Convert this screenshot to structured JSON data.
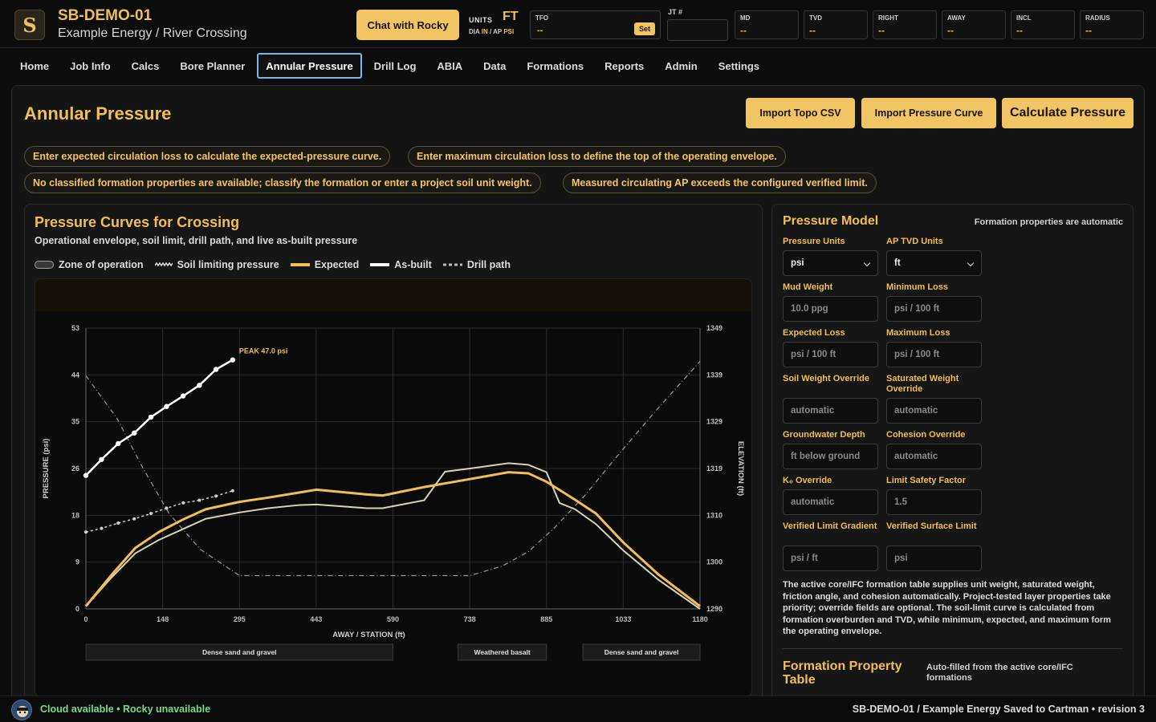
{
  "header": {
    "job_id": "SB-DEMO-01",
    "job_subtitle": "Example Energy / River Crossing",
    "chat_button": "Chat with Rocky",
    "units_label": "UNITS",
    "units_value": "FT",
    "units_sub_dia": "DIA",
    "units_sub_dia_unit": "IN",
    "units_sub_sep": "/",
    "units_sub_ap": "AP",
    "units_sub_ap_unit": "PSI",
    "tfo_label": "TFO",
    "tfo_value": "--",
    "tfo_set": "Set",
    "jt_label": "JT #",
    "metrics": [
      {
        "label": "MD",
        "value": "--"
      },
      {
        "label": "TVD",
        "value": "--"
      },
      {
        "label": "RIGHT",
        "value": "--"
      },
      {
        "label": "AWAY",
        "value": "--"
      },
      {
        "label": "INCL",
        "value": "--"
      },
      {
        "label": "RADIUS",
        "value": "--"
      }
    ]
  },
  "nav": {
    "tabs": [
      "Home",
      "Job Info",
      "Calcs",
      "Bore Planner",
      "Annular Pressure",
      "Drill Log",
      "ABIA",
      "Data",
      "Formations",
      "Reports",
      "Admin",
      "Settings"
    ],
    "active": "Annular Pressure"
  },
  "page": {
    "title": "Annular Pressure",
    "buttons": {
      "import_topo": "Import Topo CSV",
      "import_curve": "Import Pressure Curve",
      "calculate": "Calculate Pressure"
    },
    "warnings": [
      "Enter expected circulation loss to calculate the expected-pressure curve.",
      "Enter maximum circulation loss to define the top of the operating envelope.",
      "No classified formation properties are available; classify the formation or enter a project soil unit weight.",
      "Measured circulating AP exceeds the configured verified limit."
    ]
  },
  "chart_card": {
    "title": "Pressure Curves for Crossing",
    "subtitle": "Operational envelope, soil limit, drill path, and live as-built pressure",
    "legend": [
      "Zone of operation",
      "Soil limiting pressure",
      "Expected",
      "As-built",
      "Drill path"
    ]
  },
  "chart_data": {
    "type": "line",
    "xlabel": "AWAY / STATION (ft)",
    "ylabel": "PRESSURE (psi)",
    "y2label": "ELEVATION (ft)",
    "xlim": [
      0,
      1180
    ],
    "ylim": [
      0,
      53
    ],
    "y2lim": [
      1290,
      1349
    ],
    "x_ticks": [
      "0",
      "148",
      "295",
      "443",
      "590",
      "738",
      "885",
      "1033",
      "1180"
    ],
    "y_ticks": [
      "0",
      "9",
      "18",
      "26",
      "35",
      "44",
      "53"
    ],
    "y2_ticks": [
      "1290",
      "1300",
      "1310",
      "1319",
      "1329",
      "1339",
      "1349"
    ],
    "peak_label": "PEAK 47.0 psi",
    "colors": {
      "expected": "#f0bf55",
      "asbuilt": "#ffffff",
      "zone": "#d8d2b8",
      "soil": "#cfcfcf",
      "drill": "#9a9a9a"
    },
    "series": [
      {
        "name": "As-built",
        "x": [
          0,
          30,
          62,
          93,
          125,
          155,
          187,
          218,
          250,
          282
        ],
        "y": [
          25.2,
          28.2,
          31.2,
          33.2,
          36.2,
          38.2,
          40.2,
          42.2,
          45.2,
          47.0
        ]
      },
      {
        "name": "Soil limiting pressure",
        "x": [
          0,
          30,
          62,
          93,
          125,
          155,
          187,
          218,
          250,
          282
        ],
        "y": [
          14.5,
          15.2,
          16.2,
          17.0,
          18.0,
          19.0,
          20.0,
          20.5,
          21.3,
          22.3
        ]
      },
      {
        "name": "Expected",
        "x": [
          0,
          50,
          95,
          140,
          185,
          230,
          295,
          350,
          443,
          540,
          570,
          650,
          738,
          812,
          850,
          885,
          940,
          980,
          1033,
          1100,
          1180
        ],
        "y": [
          0.5,
          6.5,
          11.5,
          14.5,
          16.8,
          18.8,
          20.2,
          21.0,
          22.5,
          21.6,
          21.4,
          23.0,
          24.5,
          25.8,
          25.6,
          24.0,
          20.6,
          18.0,
          12.5,
          6.5,
          0.5
        ]
      },
      {
        "name": "Zone of operation",
        "x": [
          0,
          50,
          95,
          140,
          185,
          230,
          295,
          350,
          410,
          443,
          540,
          570,
          650,
          690,
          738,
          812,
          850,
          885,
          910,
          940,
          980,
          1033,
          1100,
          1180
        ],
        "y": [
          0.5,
          6.0,
          10.5,
          13.0,
          15.0,
          17.0,
          18.2,
          19.0,
          19.6,
          19.7,
          19.0,
          19.0,
          20.5,
          25.9,
          26.5,
          27.5,
          27.2,
          25.8,
          20.0,
          18.8,
          16.0,
          11.0,
          5.5,
          0.0
        ]
      },
      {
        "name": "Drill path",
        "x": [
          0,
          60,
          110,
          160,
          220,
          295,
          443,
          590,
          738,
          800,
          850,
          900,
          960,
          1020,
          1090,
          1180
        ],
        "y": [
          1339.0,
          1330.0,
          1319.5,
          1310.0,
          1302.5,
          1297.0,
          1297.0,
          1297.0,
          1297.0,
          1299.0,
          1302.0,
          1307.0,
          1314.0,
          1322.0,
          1331.0,
          1342.0
        ]
      }
    ],
    "formations": [
      "Dense sand and gravel",
      "Weathered basalt",
      "Dense sand and gravel"
    ]
  },
  "pressure_model": {
    "title": "Pressure Model",
    "note": "Formation properties are automatic",
    "fields": [
      {
        "label": "Pressure Units",
        "value": "psi"
      },
      {
        "label": "AP TVD Units",
        "value": "ft"
      },
      {
        "label": "Mud Weight",
        "placeholder": "10.0 ppg"
      },
      {
        "label": "Minimum Loss",
        "placeholder": "psi / 100 ft"
      },
      {
        "label": "Expected Loss",
        "placeholder": "psi / 100 ft"
      },
      {
        "label": "Maximum Loss",
        "placeholder": "psi / 100 ft"
      },
      {
        "label": "Soil Weight Override",
        "placeholder": "automatic"
      },
      {
        "label": "Saturated Weight Override",
        "placeholder": "automatic"
      },
      {
        "label": "Groundwater Depth",
        "placeholder": "ft below ground"
      },
      {
        "label": "Cohesion Override",
        "placeholder": "automatic"
      },
      {
        "label": "K₀ Override",
        "placeholder": "automatic"
      },
      {
        "label": "Limit Safety Factor",
        "placeholder": "1.5"
      },
      {
        "label": "Verified Limit Gradient",
        "placeholder": "psi / ft"
      },
      {
        "label": "Verified Surface Limit",
        "placeholder": "psi"
      }
    ],
    "paragraph": "The active core/IFC formation table supplies unit weight, saturated weight, friction angle, and cohesion automatically. Project-tested layer properties take priority; override fields are optional. The soil-limit curve is calculated from formation overburden and TVD, while minimum, expected, and maximum form the operating envelope.",
    "fpt_title": "Formation Property Table",
    "fpt_note": "Auto-filled from the active core/IFC formations"
  },
  "status": {
    "left": "Cloud available • Rocky unavailable",
    "right": "SB-DEMO-01 / Example Energy   Saved to Cartman • revision 3"
  }
}
